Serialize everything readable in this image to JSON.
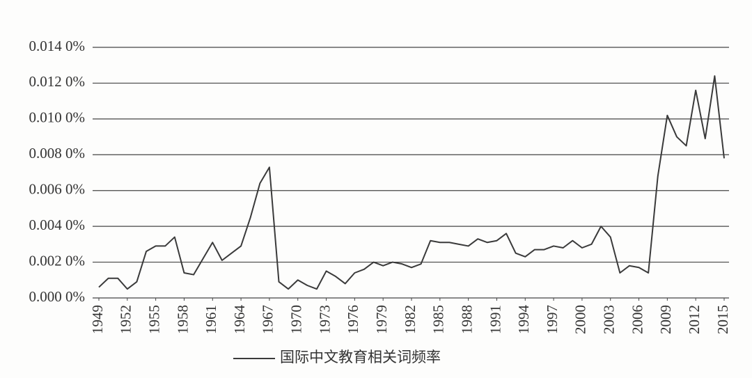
{
  "chart_data": {
    "type": "line",
    "x": [
      1949,
      1950,
      1951,
      1952,
      1953,
      1954,
      1955,
      1956,
      1957,
      1958,
      1959,
      1960,
      1961,
      1962,
      1963,
      1964,
      1965,
      1966,
      1967,
      1968,
      1969,
      1970,
      1971,
      1972,
      1973,
      1974,
      1975,
      1976,
      1977,
      1978,
      1979,
      1980,
      1981,
      1982,
      1983,
      1984,
      1985,
      1986,
      1987,
      1988,
      1989,
      1990,
      1991,
      1992,
      1993,
      1994,
      1995,
      1996,
      1997,
      1998,
      1999,
      2000,
      2001,
      2002,
      2003,
      2004,
      2005,
      2006,
      2007,
      2008,
      2009,
      2010,
      2011,
      2012,
      2013,
      2014,
      2015
    ],
    "series": [
      {
        "name": "国际中文教育相关词频率",
        "color": "#3a3a3a",
        "values": [
          0.0006,
          0.0011,
          0.0011,
          0.0005,
          0.0009,
          0.0026,
          0.0029,
          0.0029,
          0.0034,
          0.0014,
          0.0013,
          0.0022,
          0.0031,
          0.0021,
          0.0025,
          0.0029,
          0.0045,
          0.0064,
          0.0073,
          0.0009,
          0.0005,
          0.001,
          0.0007,
          0.0005,
          0.0015,
          0.0012,
          0.0008,
          0.0014,
          0.0016,
          0.002,
          0.0018,
          0.002,
          0.0019,
          0.0017,
          0.0019,
          0.0032,
          0.0031,
          0.0031,
          0.003,
          0.0029,
          0.0033,
          0.0031,
          0.0032,
          0.0036,
          0.0025,
          0.0023,
          0.0027,
          0.0027,
          0.0029,
          0.0028,
          0.0032,
          0.0028,
          0.003,
          0.004,
          0.0034,
          0.0014,
          0.0018,
          0.0017,
          0.0014,
          0.0068,
          0.0102,
          0.009,
          0.0085,
          0.0116,
          0.0089,
          0.0124,
          0.0078
        ]
      }
    ],
    "xlim": [
      1949,
      2015
    ],
    "xticks": [
      1949,
      1952,
      1955,
      1958,
      1961,
      1964,
      1967,
      1970,
      1973,
      1976,
      1979,
      1982,
      1985,
      1988,
      1991,
      1994,
      1997,
      2000,
      2003,
      2006,
      2009,
      2012,
      2015
    ],
    "ylim": [
      0,
      0.014
    ],
    "yticks": [
      {
        "value": 0,
        "label": "0.000 0%"
      },
      {
        "value": 0.002,
        "label": "0.002 0%"
      },
      {
        "value": 0.004,
        "label": "0.004 0%"
      },
      {
        "value": 0.006,
        "label": "0.006 0%"
      },
      {
        "value": 0.008,
        "label": "0.008 0%"
      },
      {
        "value": 0.01,
        "label": "0.010 0%"
      },
      {
        "value": 0.012,
        "label": "0.012 0%"
      },
      {
        "value": 0.014,
        "label": "0.014 0%"
      }
    ],
    "grid": true,
    "legend": "bottom"
  }
}
